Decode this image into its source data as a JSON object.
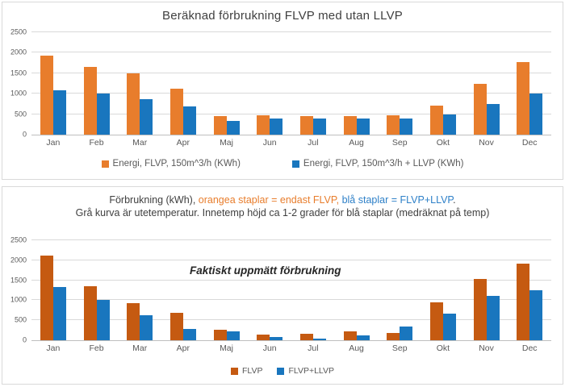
{
  "page": {
    "background": "#FFFFFF",
    "panel_border": "#D9D9D9",
    "gridline_color": "#D9D9D9",
    "axis_line_color": "#BFBFBF",
    "axis_text_color": "#595959"
  },
  "chart_data": [
    {
      "type": "bar",
      "title": "Beräknad förbrukning FLVP med utan LLVP",
      "categories": [
        "Jan",
        "Feb",
        "Mar",
        "Apr",
        "Maj",
        "Jun",
        "Jul",
        "Aug",
        "Sep",
        "Okt",
        "Nov",
        "Dec"
      ],
      "series": [
        {
          "name": "Energi, FLVP, 150m^3/h (KWh)",
          "color": "#E87D2C",
          "values": [
            1920,
            1650,
            1500,
            1120,
            460,
            480,
            460,
            460,
            475,
            700,
            1250,
            1780
          ]
        },
        {
          "name": "Energi, FLVP, 150m^3/h + LLVP (KWh)",
          "color": "#1976BE",
          "values": [
            1090,
            1010,
            870,
            680,
            330,
            400,
            400,
            395,
            395,
            500,
            740,
            1010
          ]
        }
      ],
      "ylim": [
        0,
        2500
      ],
      "y_ticks": [
        0,
        500,
        1000,
        1500,
        2000,
        2500
      ],
      "grid": true,
      "legend_position": "bottom"
    },
    {
      "type": "bar",
      "title_parts": [
        {
          "text": "Förbrukning (kWh), ",
          "color": "#404040"
        },
        {
          "text": "orangea staplar = endast FLVP,",
          "color": "#E87D2C"
        },
        {
          "text": " blå staplar = FLVP+LLVP",
          "color": "#2E80C8"
        },
        {
          "text": ".",
          "color": "#404040"
        }
      ],
      "subtitle": "Grå kurva är utetemperatur. Innetemp höjd ca 1-2 grader för blå staplar (medräknat på temp)",
      "annotation": "Faktiskt uppmätt förbrukning",
      "categories": [
        "Jan",
        "Feb",
        "Mar",
        "Apr",
        "Maj",
        "Jun",
        "Jul",
        "Aug",
        "Sep",
        "Okt",
        "Nov",
        "Dec"
      ],
      "series": [
        {
          "name": "FLVP",
          "color": "#C55A11",
          "values": [
            2110,
            1360,
            920,
            680,
            270,
            150,
            170,
            230,
            180,
            950,
            1540,
            1920
          ]
        },
        {
          "name": "FLVP+LLVP",
          "color": "#1976BE",
          "values": [
            1330,
            1010,
            630,
            290,
            220,
            80,
            50,
            120,
            350,
            660,
            1100,
            1250
          ]
        }
      ],
      "ylim": [
        0,
        2500
      ],
      "y_ticks": [
        0,
        500,
        1000,
        1500,
        2000,
        2500
      ],
      "grid": true,
      "legend_position": "bottom"
    }
  ]
}
